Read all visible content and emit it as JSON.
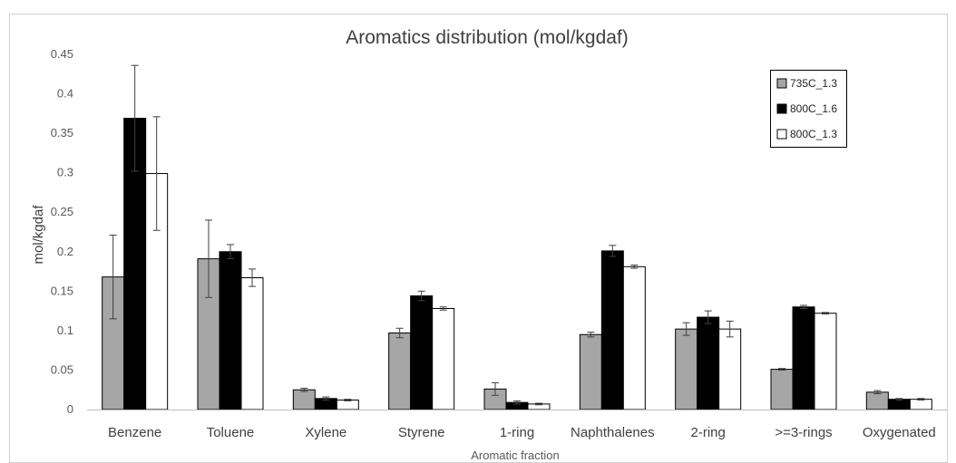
{
  "chart_data": {
    "type": "bar",
    "title": "Aromatics distribution (mol/kgdaf)",
    "xlabel": "Aromatic fraction",
    "ylabel": "mol/kgdaf",
    "ylim": [
      0,
      0.45
    ],
    "yticks": [
      "0",
      "0.05",
      "0.1",
      "0.15",
      "0.2",
      "0.25",
      "0.3",
      "0.35",
      "0.4",
      "0.45"
    ],
    "grid": false,
    "legend_position": "top-right",
    "categories": [
      "Benzene",
      "Toluene",
      "Xylene",
      "Styrene",
      "1-ring",
      "Naphthalenes",
      "2-ring",
      ">=3-rings",
      "Oxygenated"
    ],
    "series": [
      {
        "name": "735C_1.3",
        "color": "#a6a6a6",
        "values": [
          0.168,
          0.191,
          0.025,
          0.097,
          0.026,
          0.095,
          0.102,
          0.051,
          0.022
        ],
        "errors": [
          0.053,
          0.049,
          0.002,
          0.006,
          0.008,
          0.003,
          0.008,
          0.001,
          0.002
        ]
      },
      {
        "name": "800C_1.6",
        "color": "#000000",
        "values": [
          0.369,
          0.2,
          0.014,
          0.144,
          0.009,
          0.201,
          0.117,
          0.13,
          0.013
        ],
        "errors": [
          0.067,
          0.009,
          0.002,
          0.006,
          0.002,
          0.007,
          0.008,
          0.002,
          0.001
        ]
      },
      {
        "name": "800C_1.3",
        "color": "#ffffff",
        "values": [
          0.299,
          0.167,
          0.012,
          0.128,
          0.007,
          0.181,
          0.102,
          0.122,
          0.013
        ],
        "errors": [
          0.072,
          0.011,
          0.001,
          0.002,
          0.001,
          0.002,
          0.01,
          0.001,
          0.001
        ]
      }
    ]
  }
}
